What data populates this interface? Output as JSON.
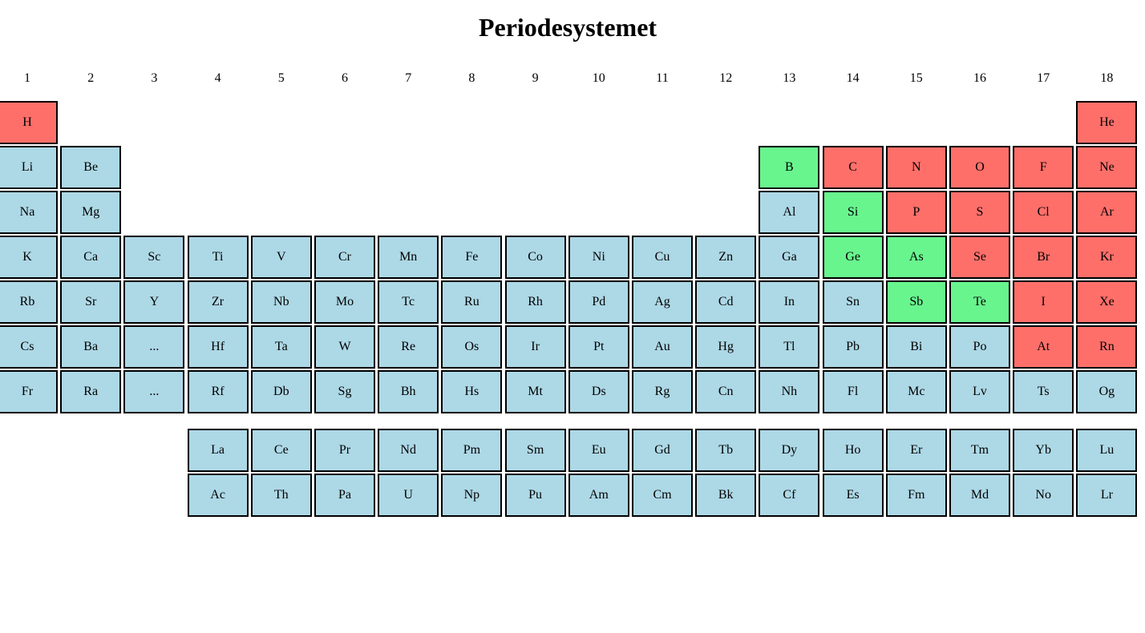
{
  "title": "Periodesystemet",
  "colors": {
    "blue": "#add8e6",
    "red": "#ff6f6a",
    "green": "#68f58e",
    "border": "#000000"
  },
  "groups": [
    "1",
    "2",
    "3",
    "4",
    "5",
    "6",
    "7",
    "8",
    "9",
    "10",
    "11",
    "12",
    "13",
    "14",
    "15",
    "16",
    "17",
    "18"
  ],
  "rows": [
    [
      {
        "symbol": "H",
        "type": "red",
        "col": 1
      },
      {
        "symbol": "He",
        "type": "red",
        "col": 18
      }
    ],
    [
      {
        "symbol": "Li",
        "type": "blue",
        "col": 1
      },
      {
        "symbol": "Be",
        "type": "blue",
        "col": 2
      },
      {
        "symbol": "B",
        "type": "green",
        "col": 13
      },
      {
        "symbol": "C",
        "type": "red",
        "col": 14
      },
      {
        "symbol": "N",
        "type": "red",
        "col": 15
      },
      {
        "symbol": "O",
        "type": "red",
        "col": 16
      },
      {
        "symbol": "F",
        "type": "red",
        "col": 17
      },
      {
        "symbol": "Ne",
        "type": "red",
        "col": 18
      }
    ],
    [
      {
        "symbol": "Na",
        "type": "blue",
        "col": 1
      },
      {
        "symbol": "Mg",
        "type": "blue",
        "col": 2
      },
      {
        "symbol": "Al",
        "type": "blue",
        "col": 13
      },
      {
        "symbol": "Si",
        "type": "green",
        "col": 14
      },
      {
        "symbol": "P",
        "type": "red",
        "col": 15
      },
      {
        "symbol": "S",
        "type": "red",
        "col": 16
      },
      {
        "symbol": "Cl",
        "type": "red",
        "col": 17
      },
      {
        "symbol": "Ar",
        "type": "red",
        "col": 18
      }
    ],
    [
      {
        "symbol": "K",
        "type": "blue",
        "col": 1
      },
      {
        "symbol": "Ca",
        "type": "blue",
        "col": 2
      },
      {
        "symbol": "Sc",
        "type": "blue",
        "col": 3
      },
      {
        "symbol": "Ti",
        "type": "blue",
        "col": 4
      },
      {
        "symbol": "V",
        "type": "blue",
        "col": 5
      },
      {
        "symbol": "Cr",
        "type": "blue",
        "col": 6
      },
      {
        "symbol": "Mn",
        "type": "blue",
        "col": 7
      },
      {
        "symbol": "Fe",
        "type": "blue",
        "col": 8
      },
      {
        "symbol": "Co",
        "type": "blue",
        "col": 9
      },
      {
        "symbol": "Ni",
        "type": "blue",
        "col": 10
      },
      {
        "symbol": "Cu",
        "type": "blue",
        "col": 11
      },
      {
        "symbol": "Zn",
        "type": "blue",
        "col": 12
      },
      {
        "symbol": "Ga",
        "type": "blue",
        "col": 13
      },
      {
        "symbol": "Ge",
        "type": "green",
        "col": 14
      },
      {
        "symbol": "As",
        "type": "green",
        "col": 15
      },
      {
        "symbol": "Se",
        "type": "red",
        "col": 16
      },
      {
        "symbol": "Br",
        "type": "red",
        "col": 17
      },
      {
        "symbol": "Kr",
        "type": "red",
        "col": 18
      }
    ],
    [
      {
        "symbol": "Rb",
        "type": "blue",
        "col": 1
      },
      {
        "symbol": "Sr",
        "type": "blue",
        "col": 2
      },
      {
        "symbol": "Y",
        "type": "blue",
        "col": 3
      },
      {
        "symbol": "Zr",
        "type": "blue",
        "col": 4
      },
      {
        "symbol": "Nb",
        "type": "blue",
        "col": 5
      },
      {
        "symbol": "Mo",
        "type": "blue",
        "col": 6
      },
      {
        "symbol": "Tc",
        "type": "blue",
        "col": 7
      },
      {
        "symbol": "Ru",
        "type": "blue",
        "col": 8
      },
      {
        "symbol": "Rh",
        "type": "blue",
        "col": 9
      },
      {
        "symbol": "Pd",
        "type": "blue",
        "col": 10
      },
      {
        "symbol": "Ag",
        "type": "blue",
        "col": 11
      },
      {
        "symbol": "Cd",
        "type": "blue",
        "col": 12
      },
      {
        "symbol": "In",
        "type": "blue",
        "col": 13
      },
      {
        "symbol": "Sn",
        "type": "blue",
        "col": 14
      },
      {
        "symbol": "Sb",
        "type": "green",
        "col": 15
      },
      {
        "symbol": "Te",
        "type": "green",
        "col": 16
      },
      {
        "symbol": "I",
        "type": "red",
        "col": 17
      },
      {
        "symbol": "Xe",
        "type": "red",
        "col": 18
      }
    ],
    [
      {
        "symbol": "Cs",
        "type": "blue",
        "col": 1
      },
      {
        "symbol": "Ba",
        "type": "blue",
        "col": 2
      },
      {
        "symbol": "...",
        "type": "blue",
        "col": 3
      },
      {
        "symbol": "Hf",
        "type": "blue",
        "col": 4
      },
      {
        "symbol": "Ta",
        "type": "blue",
        "col": 5
      },
      {
        "symbol": "W",
        "type": "blue",
        "col": 6
      },
      {
        "symbol": "Re",
        "type": "blue",
        "col": 7
      },
      {
        "symbol": "Os",
        "type": "blue",
        "col": 8
      },
      {
        "symbol": "Ir",
        "type": "blue",
        "col": 9
      },
      {
        "symbol": "Pt",
        "type": "blue",
        "col": 10
      },
      {
        "symbol": "Au",
        "type": "blue",
        "col": 11
      },
      {
        "symbol": "Hg",
        "type": "blue",
        "col": 12
      },
      {
        "symbol": "Tl",
        "type": "blue",
        "col": 13
      },
      {
        "symbol": "Pb",
        "type": "blue",
        "col": 14
      },
      {
        "symbol": "Bi",
        "type": "blue",
        "col": 15
      },
      {
        "symbol": "Po",
        "type": "blue",
        "col": 16
      },
      {
        "symbol": "At",
        "type": "red",
        "col": 17
      },
      {
        "symbol": "Rn",
        "type": "red",
        "col": 18
      }
    ],
    [
      {
        "symbol": "Fr",
        "type": "blue",
        "col": 1
      },
      {
        "symbol": "Ra",
        "type": "blue",
        "col": 2
      },
      {
        "symbol": "...",
        "type": "blue",
        "col": 3
      },
      {
        "symbol": "Rf",
        "type": "blue",
        "col": 4
      },
      {
        "symbol": "Db",
        "type": "blue",
        "col": 5
      },
      {
        "symbol": "Sg",
        "type": "blue",
        "col": 6
      },
      {
        "symbol": "Bh",
        "type": "blue",
        "col": 7
      },
      {
        "symbol": "Hs",
        "type": "blue",
        "col": 8
      },
      {
        "symbol": "Mt",
        "type": "blue",
        "col": 9
      },
      {
        "symbol": "Ds",
        "type": "blue",
        "col": 10
      },
      {
        "symbol": "Rg",
        "type": "blue",
        "col": 11
      },
      {
        "symbol": "Cn",
        "type": "blue",
        "col": 12
      },
      {
        "symbol": "Nh",
        "type": "blue",
        "col": 13
      },
      {
        "symbol": "Fl",
        "type": "blue",
        "col": 14
      },
      {
        "symbol": "Mc",
        "type": "blue",
        "col": 15
      },
      {
        "symbol": "Lv",
        "type": "blue",
        "col": 16
      },
      {
        "symbol": "Ts",
        "type": "blue",
        "col": 17
      },
      {
        "symbol": "Og",
        "type": "blue",
        "col": 18
      }
    ]
  ],
  "f_block": [
    [
      {
        "symbol": "La",
        "type": "blue",
        "col": 4
      },
      {
        "symbol": "Ce",
        "type": "blue",
        "col": 5
      },
      {
        "symbol": "Pr",
        "type": "blue",
        "col": 6
      },
      {
        "symbol": "Nd",
        "type": "blue",
        "col": 7
      },
      {
        "symbol": "Pm",
        "type": "blue",
        "col": 8
      },
      {
        "symbol": "Sm",
        "type": "blue",
        "col": 9
      },
      {
        "symbol": "Eu",
        "type": "blue",
        "col": 10
      },
      {
        "symbol": "Gd",
        "type": "blue",
        "col": 11
      },
      {
        "symbol": "Tb",
        "type": "blue",
        "col": 12
      },
      {
        "symbol": "Dy",
        "type": "blue",
        "col": 13
      },
      {
        "symbol": "Ho",
        "type": "blue",
        "col": 14
      },
      {
        "symbol": "Er",
        "type": "blue",
        "col": 15
      },
      {
        "symbol": "Tm",
        "type": "blue",
        "col": 16
      },
      {
        "symbol": "Yb",
        "type": "blue",
        "col": 17
      },
      {
        "symbol": "Lu",
        "type": "blue",
        "col": 18
      }
    ],
    [
      {
        "symbol": "Ac",
        "type": "blue",
        "col": 4
      },
      {
        "symbol": "Th",
        "type": "blue",
        "col": 5
      },
      {
        "symbol": "Pa",
        "type": "blue",
        "col": 6
      },
      {
        "symbol": "U",
        "type": "blue",
        "col": 7
      },
      {
        "symbol": "Np",
        "type": "blue",
        "col": 8
      },
      {
        "symbol": "Pu",
        "type": "blue",
        "col": 9
      },
      {
        "symbol": "Am",
        "type": "blue",
        "col": 10
      },
      {
        "symbol": "Cm",
        "type": "blue",
        "col": 11
      },
      {
        "symbol": "Bk",
        "type": "blue",
        "col": 12
      },
      {
        "symbol": "Cf",
        "type": "blue",
        "col": 13
      },
      {
        "symbol": "Es",
        "type": "blue",
        "col": 14
      },
      {
        "symbol": "Fm",
        "type": "blue",
        "col": 15
      },
      {
        "symbol": "Md",
        "type": "blue",
        "col": 16
      },
      {
        "symbol": "No",
        "type": "blue",
        "col": 17
      },
      {
        "symbol": "Lr",
        "type": "blue",
        "col": 18
      }
    ]
  ]
}
